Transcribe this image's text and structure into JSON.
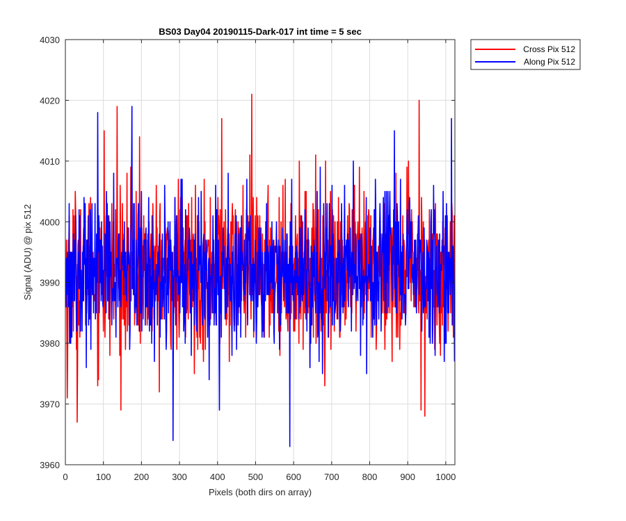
{
  "chart_data": {
    "type": "line",
    "title": "BS03 Day04 20190115-Dark-017 int time = 5 sec",
    "xlabel": "Pixels (both dirs on array)",
    "ylabel": "Signal (ADU) @ pix 512",
    "xlim": [
      0,
      1024
    ],
    "ylim": [
      3960,
      4030
    ],
    "xticks": [
      0,
      100,
      200,
      300,
      400,
      500,
      600,
      700,
      800,
      900,
      1000
    ],
    "yticks": [
      3960,
      3970,
      3980,
      3990,
      4000,
      4010,
      4020,
      4030
    ],
    "grid": true,
    "legend_position": "outside-top-right",
    "series": [
      {
        "name": "Cross Pix 512",
        "color": "#ff0000",
        "mean": 3992,
        "stdev": 6.5,
        "y_min": 3967,
        "y_max": 4021,
        "notable_points": [
          {
            "x": 5,
            "y": 3971
          },
          {
            "x": 31,
            "y": 3967
          },
          {
            "x": 102,
            "y": 4015
          },
          {
            "x": 136,
            "y": 4019
          },
          {
            "x": 195,
            "y": 4014
          },
          {
            "x": 411,
            "y": 4017
          },
          {
            "x": 490,
            "y": 4021
          },
          {
            "x": 930,
            "y": 4020
          },
          {
            "x": 935,
            "y": 3969
          },
          {
            "x": 945,
            "y": 3968
          }
        ]
      },
      {
        "name": "Along Pix 512",
        "color": "#0000ff",
        "mean": 3992,
        "stdev": 6.0,
        "y_min": 3963,
        "y_max": 4019,
        "notable_points": [
          {
            "x": 85,
            "y": 4018
          },
          {
            "x": 175,
            "y": 4019
          },
          {
            "x": 283,
            "y": 3964
          },
          {
            "x": 405,
            "y": 3969
          },
          {
            "x": 590,
            "y": 3963
          },
          {
            "x": 865,
            "y": 4015
          },
          {
            "x": 1015,
            "y": 4017
          }
        ]
      }
    ]
  }
}
